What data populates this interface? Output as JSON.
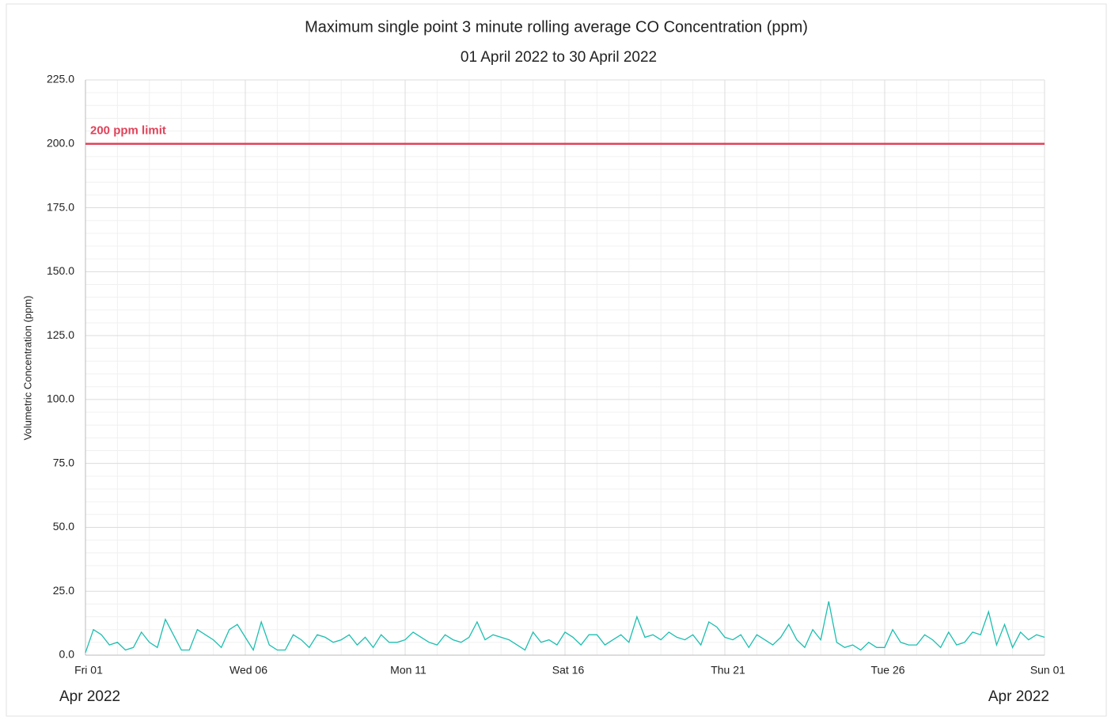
{
  "chart_data": {
    "type": "line",
    "title": "Maximum single point 3 minute rolling average CO Concentration (ppm)",
    "subtitle": "01 April 2022 to 30 April 2022",
    "ylabel": "Volumetric Concentration (ppm)",
    "xlim": [
      0,
      30
    ],
    "xticks": [
      {
        "value": 0,
        "label": "Fri 01"
      },
      {
        "value": 5,
        "label": "Wed 06"
      },
      {
        "value": 10,
        "label": "Mon 11"
      },
      {
        "value": 15,
        "label": "Sat 16"
      },
      {
        "value": 20,
        "label": "Thu 21"
      },
      {
        "value": 25,
        "label": "Tue 26"
      },
      {
        "value": 30,
        "label": "Sun 01"
      }
    ],
    "x_sublabels": [
      {
        "value": 0,
        "label": "Apr 2022"
      },
      {
        "value": 30,
        "label": "Apr 2022"
      }
    ],
    "ylim": [
      0,
      225
    ],
    "yticks": [
      {
        "value": 0,
        "label": "0.0"
      },
      {
        "value": 25,
        "label": "25.0"
      },
      {
        "value": 50,
        "label": "50.0"
      },
      {
        "value": 75,
        "label": "75.0"
      },
      {
        "value": 100,
        "label": "100.0"
      },
      {
        "value": 125,
        "label": "125.0"
      },
      {
        "value": 150,
        "label": "150.0"
      },
      {
        "value": 175,
        "label": "175.0"
      },
      {
        "value": 200,
        "label": "200.0"
      },
      {
        "value": 225,
        "label": "225.0"
      }
    ],
    "grid": true,
    "annotations": [
      {
        "value": 200,
        "label": "200 ppm limit",
        "color": "#e0435a"
      }
    ],
    "x": [
      0,
      0.25,
      0.5,
      0.75,
      1,
      1.25,
      1.5,
      1.75,
      2,
      2.25,
      2.5,
      2.75,
      3,
      3.25,
      3.5,
      3.75,
      4,
      4.25,
      4.5,
      4.75,
      5,
      5.25,
      5.5,
      5.75,
      6,
      6.25,
      6.5,
      6.75,
      7,
      7.25,
      7.5,
      7.75,
      8,
      8.25,
      8.5,
      8.75,
      9,
      9.25,
      9.5,
      9.75,
      10,
      10.25,
      10.5,
      10.75,
      11,
      11.25,
      11.5,
      11.75,
      12,
      12.25,
      12.5,
      12.75,
      13,
      13.25,
      13.5,
      13.75,
      14,
      14.25,
      14.5,
      14.75,
      15,
      15.25,
      15.5,
      15.75,
      16,
      16.25,
      16.5,
      16.75,
      17,
      17.25,
      17.5,
      17.75,
      18,
      18.25,
      18.5,
      18.75,
      19,
      19.25,
      19.5,
      19.75,
      20,
      20.25,
      20.5,
      20.75,
      21,
      21.25,
      21.5,
      21.75,
      22,
      22.25,
      22.5,
      22.75,
      23,
      23.25,
      23.5,
      23.75,
      24,
      24.25,
      24.5,
      24.75,
      25,
      25.25,
      25.5,
      25.75,
      26,
      26.25,
      26.5,
      26.75,
      27,
      27.25,
      27.5,
      27.75,
      28,
      28.25,
      28.5,
      28.75,
      29,
      29.25,
      29.5,
      29.75,
      30
    ],
    "series": [
      {
        "color": "#1bbfb0",
        "values": [
          1,
          10,
          8,
          4,
          5,
          2,
          3,
          9,
          5,
          3,
          14,
          8,
          2,
          2,
          10,
          8,
          6,
          3,
          10,
          12,
          7,
          2,
          13,
          4,
          2,
          2,
          8,
          6,
          3,
          8,
          7,
          5,
          6,
          8,
          4,
          7,
          3,
          8,
          5,
          5,
          6,
          9,
          7,
          5,
          4,
          8,
          6,
          5,
          7,
          13,
          6,
          8,
          7,
          6,
          4,
          2,
          9,
          5,
          6,
          4,
          9,
          7,
          4,
          8,
          8,
          4,
          6,
          8,
          5,
          15,
          7,
          8,
          6,
          9,
          7,
          6,
          8,
          4,
          13,
          11,
          7,
          6,
          8,
          3,
          8,
          6,
          4,
          7,
          12,
          6,
          3,
          10,
          6,
          21,
          5,
          3,
          4,
          2,
          5,
          3,
          3,
          10,
          5,
          4,
          4,
          8,
          6,
          3,
          9,
          4,
          5,
          9,
          8,
          17,
          4,
          12,
          3,
          9,
          6,
          8,
          7
        ]
      }
    ]
  }
}
